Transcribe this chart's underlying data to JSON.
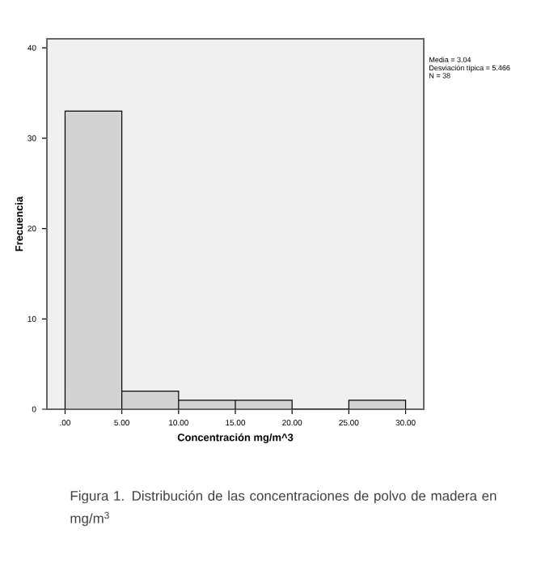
{
  "chart_data": {
    "type": "histogram",
    "xlabel": "Concentración mg/m^3",
    "ylabel": "Frecuencia",
    "bins": [
      0,
      5,
      10,
      15,
      20,
      25,
      30
    ],
    "values": [
      33,
      2,
      1,
      1,
      0,
      1
    ],
    "color": "#d3d3d3",
    "xlim": [
      -1.6,
      31.6
    ],
    "ylim": [
      0,
      41
    ],
    "xticks": [
      {
        "value": 0,
        "label": ".00"
      },
      {
        "value": 5,
        "label": "5.00"
      },
      {
        "value": 10,
        "label": "10.00"
      },
      {
        "value": 15,
        "label": "15.00"
      },
      {
        "value": 20,
        "label": "20.00"
      },
      {
        "value": 25,
        "label": "25.00"
      },
      {
        "value": 30,
        "label": "30.00"
      }
    ],
    "yticks": [
      0,
      10,
      20,
      30,
      40
    ],
    "annotations": [
      "Media = 3.04",
      "Desviación típica = 5.466",
      "N = 38",
      "Figura 1. Distribución de las concentraciones de polvo de madera en mg/m$^{3}$"
    ]
  }
}
